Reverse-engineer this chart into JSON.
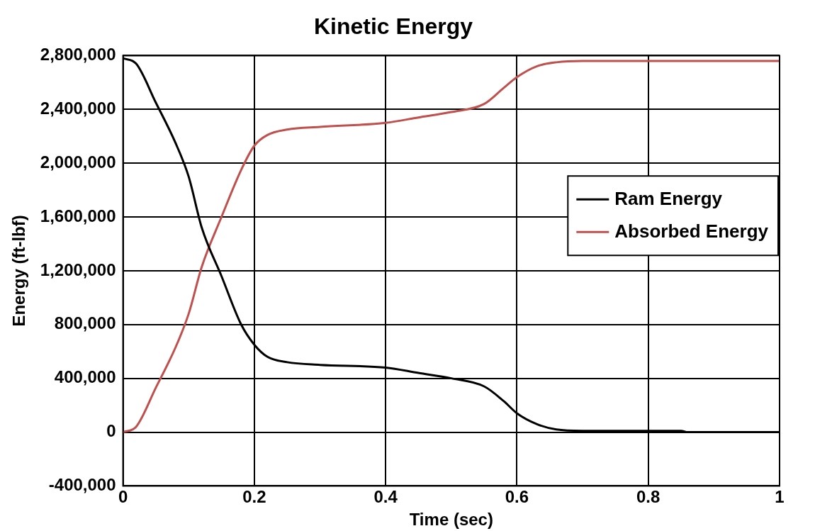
{
  "chart_data": {
    "type": "line",
    "title": "Kinetic Energy",
    "xlabel": "Time (sec)",
    "ylabel": "Energy (ft-lbf)",
    "x": [
      0,
      0.02,
      0.05,
      0.08,
      0.1,
      0.12,
      0.15,
      0.18,
      0.2,
      0.22,
      0.25,
      0.3,
      0.4,
      0.45,
      0.5,
      0.55,
      0.58,
      0.6,
      0.63,
      0.66,
      0.7,
      0.85,
      0.86,
      1
    ],
    "series": [
      {
        "name": "Ram Energy",
        "color": "#000000",
        "values": [
          2780000,
          2740000,
          2450000,
          2150000,
          1900000,
          1520000,
          1160000,
          800000,
          650000,
          560000,
          520000,
          500000,
          480000,
          440000,
          400000,
          340000,
          230000,
          140000,
          60000,
          20000,
          10000,
          10000,
          0,
          0
        ]
      },
      {
        "name": "Absorbed Energy",
        "color": "#c0504d",
        "values": [
          0,
          40000,
          330000,
          630000,
          880000,
          1230000,
          1600000,
          1950000,
          2130000,
          2210000,
          2250000,
          2270000,
          2300000,
          2340000,
          2380000,
          2440000,
          2560000,
          2640000,
          2720000,
          2750000,
          2760000,
          2760000,
          2760000,
          2760000
        ]
      }
    ],
    "xlim": [
      0,
      1
    ],
    "xticks": [
      0,
      0.2,
      0.4,
      0.6,
      0.8,
      1
    ],
    "ylim": [
      -400000,
      2800000
    ],
    "yticks": [
      {
        "value": -400000,
        "label": "-400,000"
      },
      0,
      {
        "value": 400000,
        "label": "400,000"
      },
      {
        "value": 800000,
        "label": "800,000"
      },
      {
        "value": 1200000,
        "label": "1,200,000"
      },
      {
        "value": 1600000,
        "label": "1,600,000"
      },
      {
        "value": 2000000,
        "label": "2,000,000"
      },
      {
        "value": 2400000,
        "label": "2,400,000"
      },
      {
        "value": 2800000,
        "label": "2,800,000"
      }
    ],
    "grid": true,
    "legend": "right",
    "marker": "none",
    "line_style": "solid"
  }
}
